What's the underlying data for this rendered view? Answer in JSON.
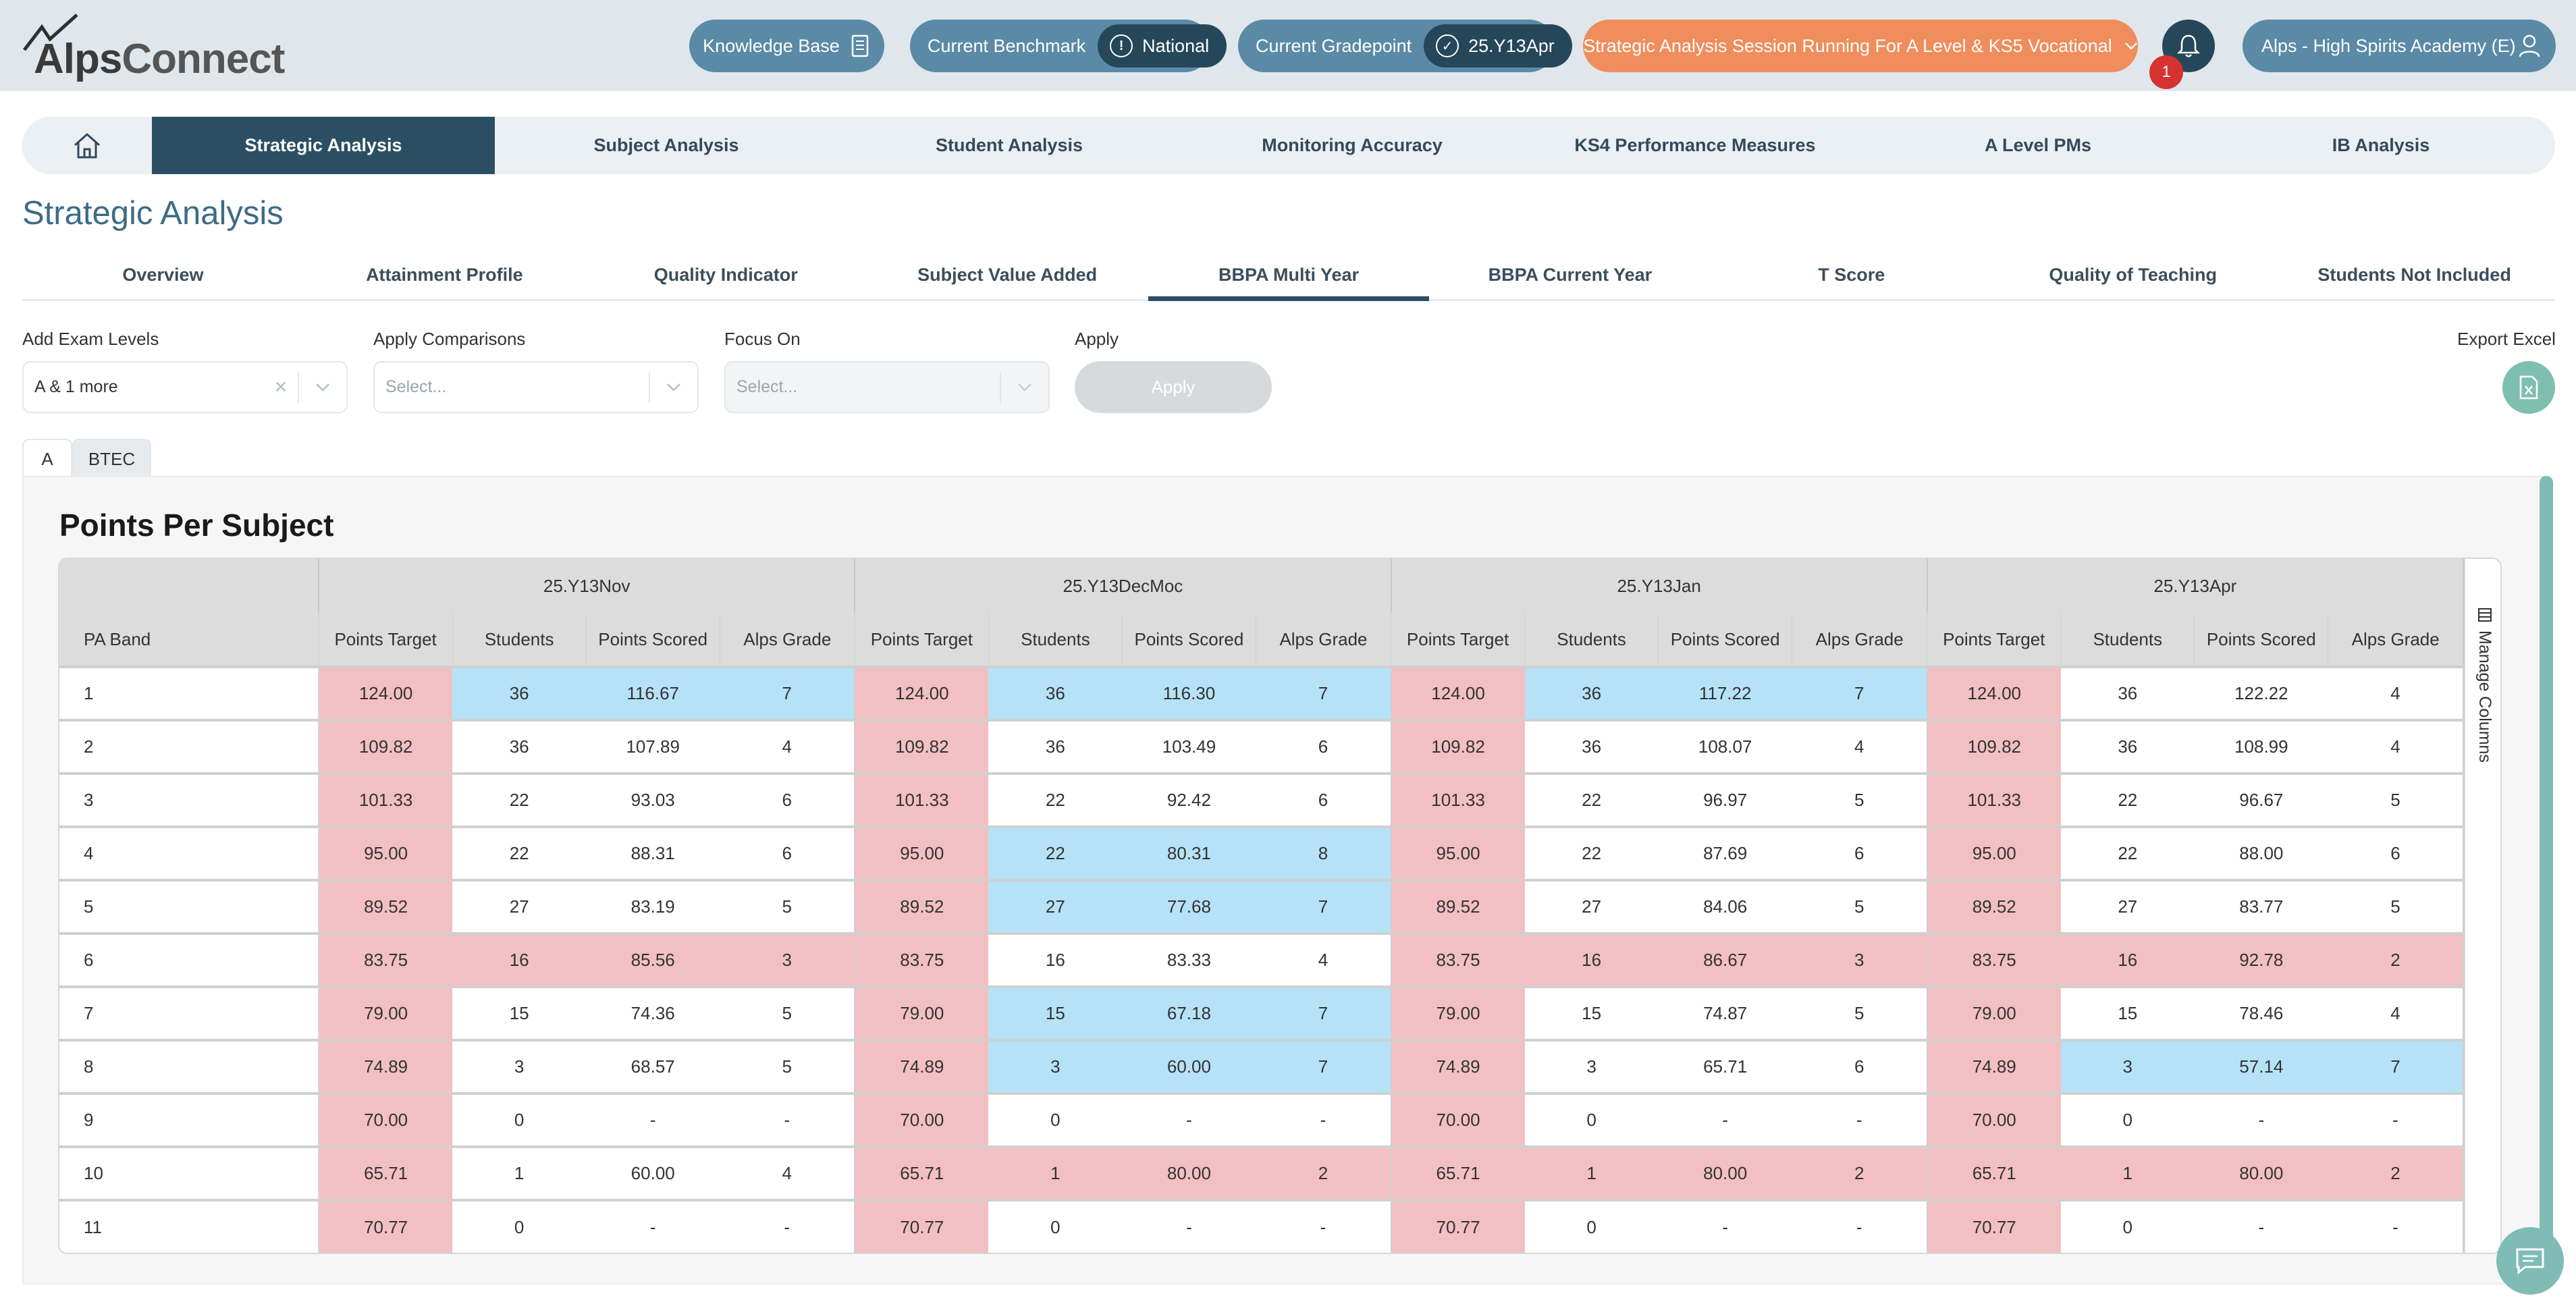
{
  "header": {
    "logo": "AlpsConnect",
    "knowledge_base": "Knowledge Base",
    "benchmark_label": "Current Benchmark",
    "benchmark_value": "National",
    "gradepoint_label": "Current Gradepoint",
    "gradepoint_value": "25.Y13Apr",
    "session_notice": "Strategic Analysis Session Running For A Level & KS5 Vocational",
    "notification_count": "1",
    "school": "Alps - High Spirits Academy (E)"
  },
  "mainnav": {
    "items": [
      "Strategic Analysis",
      "Subject Analysis",
      "Student Analysis",
      "Monitoring Accuracy",
      "KS4 Performance Measures",
      "A Level PMs",
      "IB Analysis"
    ],
    "active": "Strategic Analysis"
  },
  "page_title": "Strategic Analysis",
  "subtabs": {
    "items": [
      "Overview",
      "Attainment Profile",
      "Quality Indicator",
      "Subject Value Added",
      "BBPA Multi Year",
      "BBPA Current Year",
      "T Score",
      "Quality of Teaching",
      "Students Not Included"
    ],
    "active": "BBPA Multi Year"
  },
  "filters": {
    "exam_levels_label": "Add Exam Levels",
    "exam_levels_value": "A & 1 more",
    "comparisons_label": "Apply Comparisons",
    "comparisons_placeholder": "Select...",
    "focus_label": "Focus On",
    "focus_placeholder": "Select...",
    "apply_label": "Apply",
    "apply_button": "Apply",
    "export_label": "Export Excel"
  },
  "level_tabs": [
    "A",
    "BTEC"
  ],
  "panel_title": "Points Per Subject",
  "manage_columns": "Manage Columns",
  "colors": {
    "pink": "#f2c0c2",
    "blue": "#b6e2f7",
    "dark": "#2b4f62",
    "orange": "#f08d5c",
    "teal": "#7fbcb6"
  },
  "table": {
    "band_header": "PA Band",
    "groups": [
      "25.Y13Nov",
      "25.Y13DecMoc",
      "25.Y13Jan",
      "25.Y13Apr"
    ],
    "subheaders": [
      "Points Target",
      "Students",
      "Points Scored",
      "Alps Grade"
    ],
    "rows": [
      {
        "band": "1",
        "cells": [
          [
            "124.00",
            "p"
          ],
          [
            "36",
            "b"
          ],
          [
            "116.67",
            "b"
          ],
          [
            "7",
            "b"
          ],
          [
            "124.00",
            "p"
          ],
          [
            "36",
            "b"
          ],
          [
            "116.30",
            "b"
          ],
          [
            "7",
            "b"
          ],
          [
            "124.00",
            "p"
          ],
          [
            "36",
            "b"
          ],
          [
            "117.22",
            "b"
          ],
          [
            "7",
            "b"
          ],
          [
            "124.00",
            "p"
          ],
          [
            "36",
            "w"
          ],
          [
            "122.22",
            "w"
          ],
          [
            "4",
            "w"
          ]
        ]
      },
      {
        "band": "2",
        "cells": [
          [
            "109.82",
            "p"
          ],
          [
            "36",
            "w"
          ],
          [
            "107.89",
            "w"
          ],
          [
            "4",
            "w"
          ],
          [
            "109.82",
            "p"
          ],
          [
            "36",
            "w"
          ],
          [
            "103.49",
            "w"
          ],
          [
            "6",
            "w"
          ],
          [
            "109.82",
            "p"
          ],
          [
            "36",
            "w"
          ],
          [
            "108.07",
            "w"
          ],
          [
            "4",
            "w"
          ],
          [
            "109.82",
            "p"
          ],
          [
            "36",
            "w"
          ],
          [
            "108.99",
            "w"
          ],
          [
            "4",
            "w"
          ]
        ]
      },
      {
        "band": "3",
        "cells": [
          [
            "101.33",
            "p"
          ],
          [
            "22",
            "w"
          ],
          [
            "93.03",
            "w"
          ],
          [
            "6",
            "w"
          ],
          [
            "101.33",
            "p"
          ],
          [
            "22",
            "w"
          ],
          [
            "92.42",
            "w"
          ],
          [
            "6",
            "w"
          ],
          [
            "101.33",
            "p"
          ],
          [
            "22",
            "w"
          ],
          [
            "96.97",
            "w"
          ],
          [
            "5",
            "w"
          ],
          [
            "101.33",
            "p"
          ],
          [
            "22",
            "w"
          ],
          [
            "96.67",
            "w"
          ],
          [
            "5",
            "w"
          ]
        ]
      },
      {
        "band": "4",
        "cells": [
          [
            "95.00",
            "p"
          ],
          [
            "22",
            "w"
          ],
          [
            "88.31",
            "w"
          ],
          [
            "6",
            "w"
          ],
          [
            "95.00",
            "p"
          ],
          [
            "22",
            "b"
          ],
          [
            "80.31",
            "b"
          ],
          [
            "8",
            "b"
          ],
          [
            "95.00",
            "p"
          ],
          [
            "22",
            "w"
          ],
          [
            "87.69",
            "w"
          ],
          [
            "6",
            "w"
          ],
          [
            "95.00",
            "p"
          ],
          [
            "22",
            "w"
          ],
          [
            "88.00",
            "w"
          ],
          [
            "6",
            "w"
          ]
        ]
      },
      {
        "band": "5",
        "cells": [
          [
            "89.52",
            "p"
          ],
          [
            "27",
            "w"
          ],
          [
            "83.19",
            "w"
          ],
          [
            "5",
            "w"
          ],
          [
            "89.52",
            "p"
          ],
          [
            "27",
            "b"
          ],
          [
            "77.68",
            "b"
          ],
          [
            "7",
            "b"
          ],
          [
            "89.52",
            "p"
          ],
          [
            "27",
            "w"
          ],
          [
            "84.06",
            "w"
          ],
          [
            "5",
            "w"
          ],
          [
            "89.52",
            "p"
          ],
          [
            "27",
            "w"
          ],
          [
            "83.77",
            "w"
          ],
          [
            "5",
            "w"
          ]
        ]
      },
      {
        "band": "6",
        "cells": [
          [
            "83.75",
            "p"
          ],
          [
            "16",
            "p"
          ],
          [
            "85.56",
            "p"
          ],
          [
            "3",
            "p"
          ],
          [
            "83.75",
            "p"
          ],
          [
            "16",
            "w"
          ],
          [
            "83.33",
            "w"
          ],
          [
            "4",
            "w"
          ],
          [
            "83.75",
            "p"
          ],
          [
            "16",
            "p"
          ],
          [
            "86.67",
            "p"
          ],
          [
            "3",
            "p"
          ],
          [
            "83.75",
            "p"
          ],
          [
            "16",
            "p"
          ],
          [
            "92.78",
            "p"
          ],
          [
            "2",
            "p"
          ]
        ]
      },
      {
        "band": "7",
        "cells": [
          [
            "79.00",
            "p"
          ],
          [
            "15",
            "w"
          ],
          [
            "74.36",
            "w"
          ],
          [
            "5",
            "w"
          ],
          [
            "79.00",
            "p"
          ],
          [
            "15",
            "b"
          ],
          [
            "67.18",
            "b"
          ],
          [
            "7",
            "b"
          ],
          [
            "79.00",
            "p"
          ],
          [
            "15",
            "w"
          ],
          [
            "74.87",
            "w"
          ],
          [
            "5",
            "w"
          ],
          [
            "79.00",
            "p"
          ],
          [
            "15",
            "w"
          ],
          [
            "78.46",
            "w"
          ],
          [
            "4",
            "w"
          ]
        ]
      },
      {
        "band": "8",
        "cells": [
          [
            "74.89",
            "p"
          ],
          [
            "3",
            "w"
          ],
          [
            "68.57",
            "w"
          ],
          [
            "5",
            "w"
          ],
          [
            "74.89",
            "p"
          ],
          [
            "3",
            "b"
          ],
          [
            "60.00",
            "b"
          ],
          [
            "7",
            "b"
          ],
          [
            "74.89",
            "p"
          ],
          [
            "3",
            "w"
          ],
          [
            "65.71",
            "w"
          ],
          [
            "6",
            "w"
          ],
          [
            "74.89",
            "p"
          ],
          [
            "3",
            "b"
          ],
          [
            "57.14",
            "b"
          ],
          [
            "7",
            "b"
          ]
        ]
      },
      {
        "band": "9",
        "cells": [
          [
            "70.00",
            "p"
          ],
          [
            "0",
            "w"
          ],
          [
            "-",
            "w"
          ],
          [
            "-",
            "w"
          ],
          [
            "70.00",
            "p"
          ],
          [
            "0",
            "w"
          ],
          [
            "-",
            "w"
          ],
          [
            "-",
            "w"
          ],
          [
            "70.00",
            "p"
          ],
          [
            "0",
            "w"
          ],
          [
            "-",
            "w"
          ],
          [
            "-",
            "w"
          ],
          [
            "70.00",
            "p"
          ],
          [
            "0",
            "w"
          ],
          [
            "-",
            "w"
          ],
          [
            "-",
            "w"
          ]
        ]
      },
      {
        "band": "10",
        "cells": [
          [
            "65.71",
            "p"
          ],
          [
            "1",
            "w"
          ],
          [
            "60.00",
            "w"
          ],
          [
            "4",
            "w"
          ],
          [
            "65.71",
            "p"
          ],
          [
            "1",
            "p"
          ],
          [
            "80.00",
            "p"
          ],
          [
            "2",
            "p"
          ],
          [
            "65.71",
            "p"
          ],
          [
            "1",
            "p"
          ],
          [
            "80.00",
            "p"
          ],
          [
            "2",
            "p"
          ],
          [
            "65.71",
            "p"
          ],
          [
            "1",
            "p"
          ],
          [
            "80.00",
            "p"
          ],
          [
            "2",
            "p"
          ]
        ]
      },
      {
        "band": "11",
        "cells": [
          [
            "70.77",
            "p"
          ],
          [
            "0",
            "w"
          ],
          [
            "-",
            "w"
          ],
          [
            "-",
            "w"
          ],
          [
            "70.77",
            "p"
          ],
          [
            "0",
            "w"
          ],
          [
            "-",
            "w"
          ],
          [
            "-",
            "w"
          ],
          [
            "70.77",
            "p"
          ],
          [
            "0",
            "w"
          ],
          [
            "-",
            "w"
          ],
          [
            "-",
            "w"
          ],
          [
            "70.77",
            "p"
          ],
          [
            "0",
            "w"
          ],
          [
            "-",
            "w"
          ],
          [
            "-",
            "w"
          ]
        ]
      }
    ]
  }
}
